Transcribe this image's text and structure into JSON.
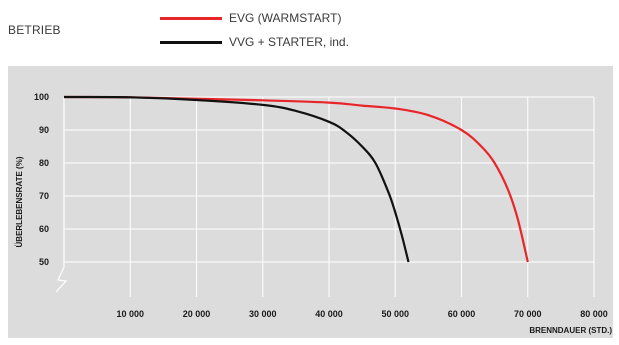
{
  "header": {
    "label": "BETRIEB"
  },
  "legend": {
    "items": [
      {
        "label": "EVG (WARMSTART)",
        "color": "#e8262a"
      },
      {
        "label": "VVG + STARTER, ind.",
        "color": "#111111"
      }
    ]
  },
  "chart_data": {
    "type": "line",
    "xlabel": "BRENNDAUER (STD.)",
    "ylabel": "ÜBERLEBENSRATE (%)",
    "xlim": [
      0,
      80000
    ],
    "ylim": [
      50,
      100
    ],
    "x_ticks": [
      "10 000",
      "20 000",
      "30 000",
      "40 000",
      "50 000",
      "60 000",
      "70 000",
      "80 000"
    ],
    "y_ticks": [
      "50",
      "60",
      "70",
      "80",
      "90",
      "100"
    ],
    "axis_break": true,
    "grid": true,
    "legend_position": "top",
    "series": [
      {
        "name": "EVG (WARMSTART)",
        "color": "#e8262a",
        "x": [
          0,
          10000,
          20000,
          30000,
          40000,
          45000,
          50000,
          55000,
          60000,
          63000,
          65000,
          67000,
          68500,
          70000
        ],
        "y": [
          100,
          99.9,
          99.5,
          99,
          98.3,
          97.4,
          96.5,
          94.5,
          90,
          85,
          80,
          72,
          63,
          50
        ]
      },
      {
        "name": "VVG + STARTER, ind.",
        "color": "#111111",
        "x": [
          0,
          10000,
          20000,
          30000,
          35000,
          40000,
          42500,
          45000,
          47000,
          49000,
          50000,
          51000,
          52000
        ],
        "y": [
          100,
          99.9,
          99.1,
          97.6,
          95.8,
          92.5,
          89.5,
          85,
          80,
          71,
          65,
          58,
          50
        ]
      }
    ]
  }
}
